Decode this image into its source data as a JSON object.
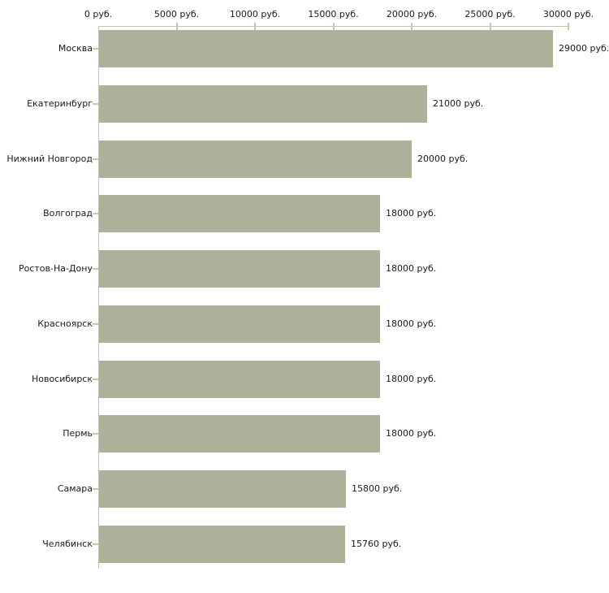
{
  "chart_data": {
    "type": "bar",
    "orientation": "horizontal",
    "title": "",
    "xlabel": "",
    "ylabel": "",
    "categories": [
      "Москва",
      "Екатеринбург",
      "Нижний Новгород",
      "Волгоград",
      "Ростов-На-Дону",
      "Красноярск",
      "Новосибирск",
      "Пермь",
      "Самара",
      "Челябинск"
    ],
    "values": [
      29000,
      21000,
      20000,
      18000,
      18000,
      18000,
      18000,
      18000,
      15800,
      15760
    ],
    "value_labels": [
      "29000 руб.",
      "21000 руб.",
      "20000 руб.",
      "18000 руб.",
      "18000 руб.",
      "18000 руб.",
      "18000 руб.",
      "18000 руб.",
      "15800 руб.",
      "15760 руб."
    ],
    "xlim": [
      0,
      30000
    ],
    "x_ticks": [
      0,
      5000,
      10000,
      15000,
      20000,
      25000,
      30000
    ],
    "x_tick_labels": [
      "0 руб.",
      "5000 руб.",
      "10000 руб.",
      "15000 руб.",
      "20000 руб.",
      "25000 руб.",
      "30000 руб."
    ],
    "grid": false,
    "legend": false,
    "colors": {
      "bar": "#acb199",
      "axis_line": "#c4c4b6",
      "tick": "#c8c8a2",
      "text": "#1a1a1a",
      "background": "#ffffff"
    }
  }
}
